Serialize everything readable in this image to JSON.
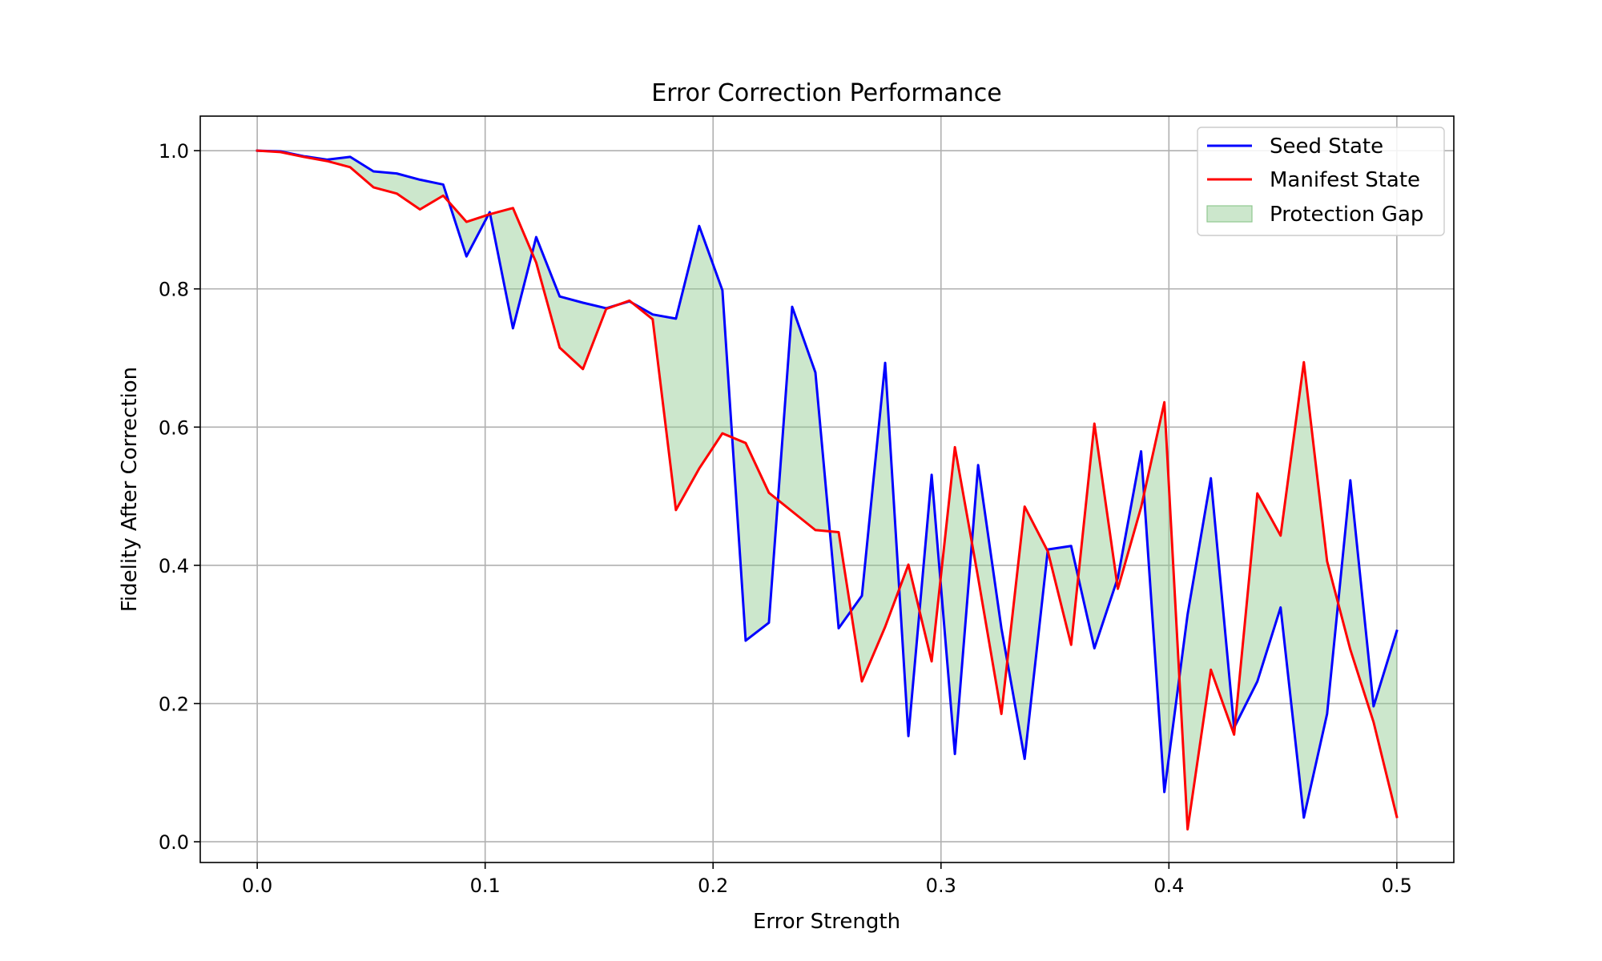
{
  "chart_data": {
    "type": "line",
    "title": "Error Correction Performance",
    "xlabel": "Error Strength",
    "ylabel": "Fidelity After Correction",
    "xlim": [
      -0.025,
      0.525
    ],
    "ylim": [
      -0.03,
      1.05
    ],
    "xticks": [
      0.0,
      0.1,
      0.2,
      0.3,
      0.4,
      0.5
    ],
    "xtick_labels": [
      "0.0",
      "0.1",
      "0.2",
      "0.3",
      "0.4",
      "0.5"
    ],
    "yticks": [
      0.0,
      0.2,
      0.4,
      0.6,
      0.8,
      1.0
    ],
    "ytick_labels": [
      "0.0",
      "0.2",
      "0.4",
      "0.6",
      "0.8",
      "1.0"
    ],
    "grid": true,
    "legend_position": "upper right",
    "x": [
      0.0,
      0.0102,
      0.0204,
      0.0306,
      0.0408,
      0.051,
      0.0612,
      0.0714,
      0.0816,
      0.0918,
      0.102,
      0.1122,
      0.1224,
      0.1327,
      0.1429,
      0.1531,
      0.1633,
      0.1735,
      0.1837,
      0.1939,
      0.2041,
      0.2143,
      0.2245,
      0.2347,
      0.2449,
      0.2551,
      0.2653,
      0.2755,
      0.2857,
      0.2959,
      0.3061,
      0.3163,
      0.3265,
      0.3367,
      0.3469,
      0.3571,
      0.3673,
      0.3776,
      0.3878,
      0.398,
      0.4082,
      0.4184,
      0.4286,
      0.4388,
      0.449,
      0.4592,
      0.4694,
      0.4796,
      0.4898,
      0.5
    ],
    "series": [
      {
        "name": "Seed State",
        "color": "#0000ff",
        "values": [
          1.0,
          0.999,
          0.992,
          0.987,
          0.991,
          0.97,
          0.967,
          0.958,
          0.951,
          0.847,
          0.911,
          0.743,
          0.875,
          0.789,
          0.78,
          0.772,
          0.782,
          0.763,
          0.757,
          0.891,
          0.798,
          0.291,
          0.317,
          0.774,
          0.679,
          0.309,
          0.356,
          0.693,
          0.153,
          0.531,
          0.127,
          0.545,
          0.309,
          0.12,
          0.423,
          0.428,
          0.28,
          0.382,
          0.565,
          0.072,
          0.329,
          0.526,
          0.165,
          0.232,
          0.339,
          0.035,
          0.185,
          0.523,
          0.196,
          0.305
        ]
      },
      {
        "name": "Manifest State",
        "color": "#ff0000",
        "values": [
          1.0,
          0.998,
          0.991,
          0.985,
          0.976,
          0.947,
          0.938,
          0.915,
          0.935,
          0.897,
          0.908,
          0.917,
          0.838,
          0.715,
          0.684,
          0.771,
          0.783,
          0.756,
          0.48,
          0.54,
          0.591,
          0.577,
          0.505,
          0.478,
          0.451,
          0.448,
          0.232,
          0.311,
          0.401,
          0.261,
          0.571,
          0.382,
          0.185,
          0.485,
          0.42,
          0.285,
          0.605,
          0.366,
          0.484,
          0.636,
          0.018,
          0.249,
          0.155,
          0.504,
          0.443,
          0.694,
          0.406,
          0.278,
          0.173,
          0.036
        ]
      }
    ],
    "fill_between": {
      "name": "Protection Gap",
      "color": "#8fc98f",
      "alpha": 0.45
    }
  }
}
